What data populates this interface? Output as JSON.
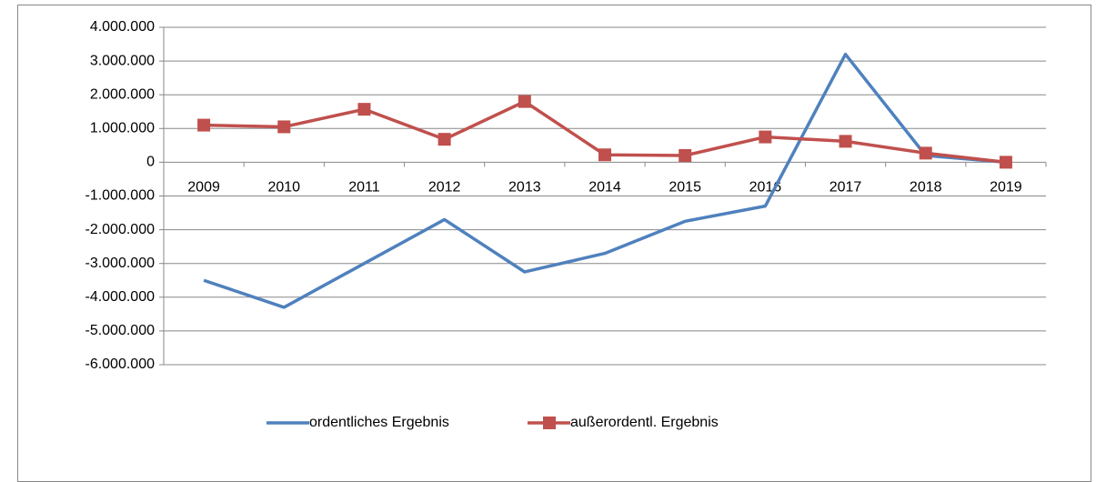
{
  "chart_data": {
    "type": "line",
    "categories": [
      "2009",
      "2010",
      "2011",
      "2012",
      "2013",
      "2014",
      "2015",
      "2016",
      "2017",
      "2018",
      "2019"
    ],
    "series": [
      {
        "name": "ordentliches Ergebnis",
        "color": "#4f81bd",
        "values": [
          -3500000,
          -4300000,
          -3000000,
          -1700000,
          -3250000,
          -2700000,
          -1750000,
          -1300000,
          3200000,
          200000,
          0
        ]
      },
      {
        "name": "außerordentl. Ergebnis",
        "color": "#c0504d",
        "marker": "square",
        "values": [
          1100000,
          1050000,
          1570000,
          680000,
          1800000,
          220000,
          200000,
          750000,
          620000,
          270000,
          0
        ]
      }
    ],
    "ylim": [
      -6000000,
      4000000
    ],
    "yticks": [
      {
        "value": -6000000,
        "label": "-6.000.000"
      },
      {
        "value": -5000000,
        "label": "-5.000.000"
      },
      {
        "value": -4000000,
        "label": "-4.000.000"
      },
      {
        "value": -3000000,
        "label": "-3.000.000"
      },
      {
        "value": -2000000,
        "label": "-2.000.000"
      },
      {
        "value": -1000000,
        "label": "-1.000.000"
      },
      0,
      {
        "value": 1000000,
        "label": "1.000.000"
      },
      {
        "value": 2000000,
        "label": "2.000.000"
      },
      {
        "value": 3000000,
        "label": "3.000.000"
      },
      {
        "value": 4000000,
        "label": "4.000.000"
      }
    ],
    "grid": true,
    "legend": "bottom"
  }
}
